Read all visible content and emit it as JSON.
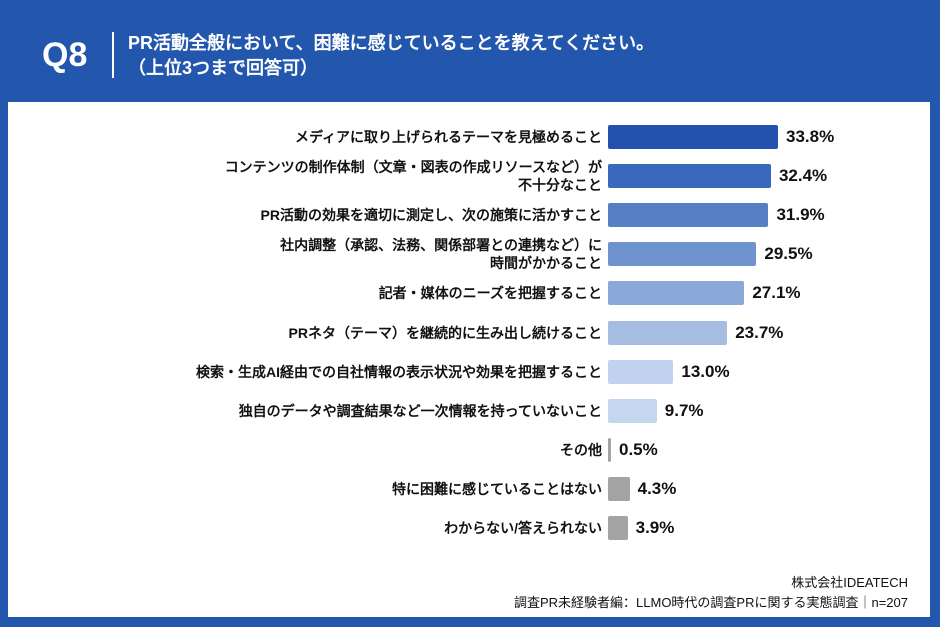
{
  "header": {
    "question": "Q8",
    "title_line1": "PR活動全般において、困難に感じていることを教えてください。",
    "title_line2": "（上位3つまで回答可）"
  },
  "chart_data": {
    "type": "bar",
    "orientation": "horizontal",
    "categories": [
      "メディアに取り上げられるテーマを見極めること",
      "コンテンツの制作体制（文章・図表の作成リソースなど）が\n不十分なこと",
      "PR活動の効果を適切に測定し、次の施策に活かすこと",
      "社内調整（承認、法務、関係部署との連携など）に\n時間がかかること",
      "記者・媒体のニーズを把握すること",
      "PRネタ（テーマ）を継続的に生み出し続けること",
      "検索・生成AI経由での自社情報の表示状況や効果を把握すること",
      "独自のデータや調査結果など一次情報を持っていないこと",
      "その他",
      "特に困難に感じていることはない",
      "わからない/答えられない"
    ],
    "values": [
      33.8,
      32.4,
      31.9,
      29.5,
      27.1,
      23.7,
      13.0,
      9.7,
      0.5,
      4.3,
      3.9
    ],
    "value_labels": [
      "33.8%",
      "32.4%",
      "31.9%",
      "29.5%",
      "27.1%",
      "23.7%",
      "13.0%",
      "9.7%",
      "0.5%",
      "4.3%",
      "3.9%"
    ],
    "colors": [
      "#2352ae",
      "#3a68bd",
      "#5580c6",
      "#6f93cf",
      "#8aa8d8",
      "#a6bde2",
      "#c0d2ed",
      "#c5d6ef",
      "#a3a3a3",
      "#a3a3a3",
      "#a3a3a3"
    ],
    "unit": "%"
  },
  "footer": {
    "company": "株式会社IDEATECH",
    "source": "調査PR未経験者編：LLMO時代の調査PRに関する実態調査｜n=207"
  }
}
